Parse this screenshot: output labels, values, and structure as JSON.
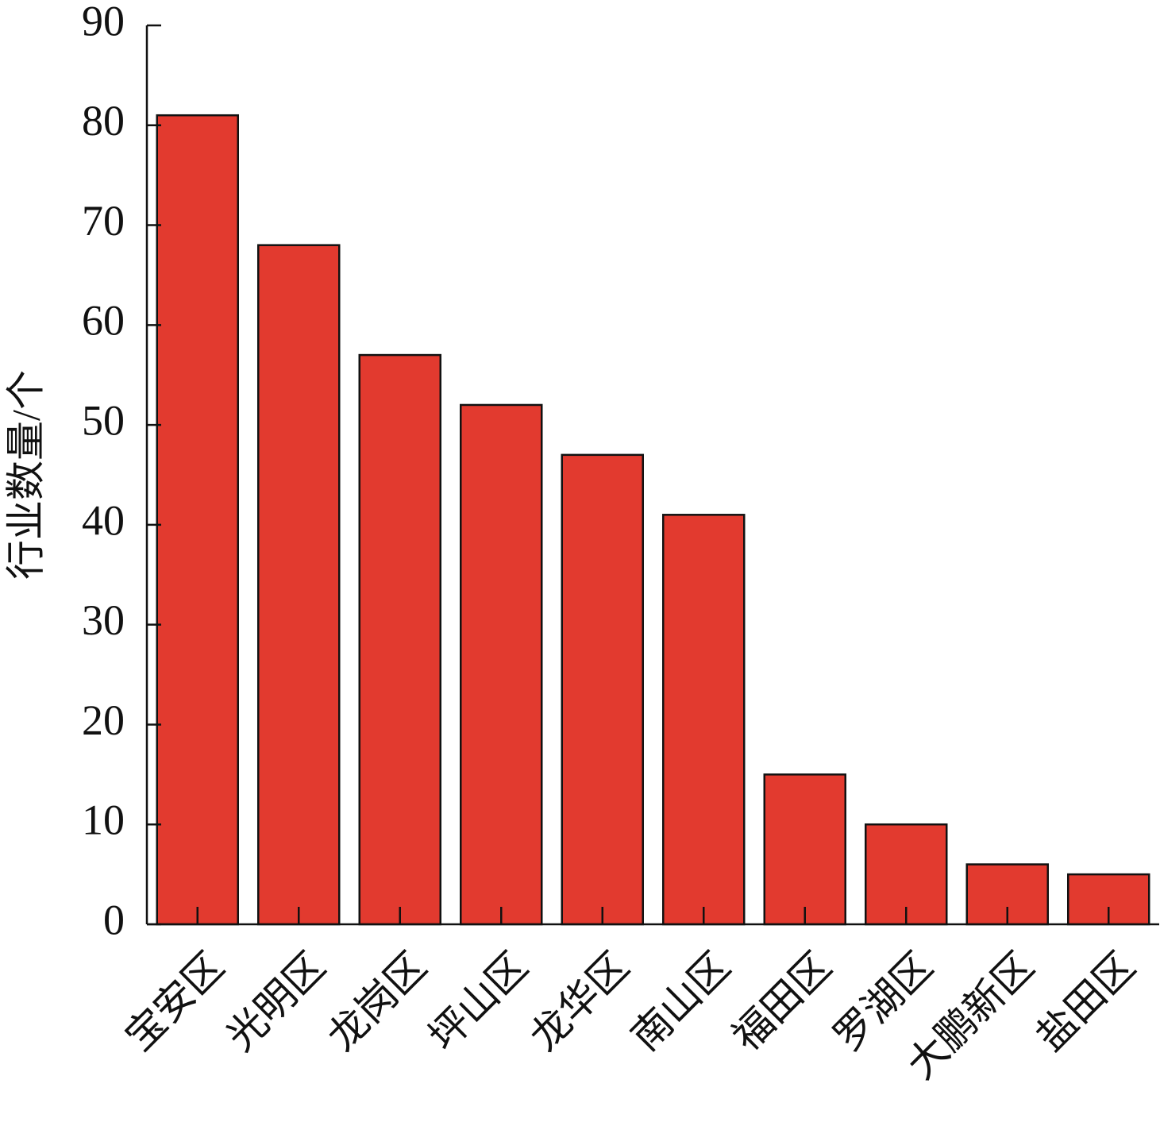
{
  "chart_data": {
    "type": "bar",
    "y_label": "行业数量/个",
    "categories": [
      "宝安区",
      "光明区",
      "龙岗区",
      "坪山区",
      "龙华区",
      "南山区",
      "福田区",
      "罗湖区",
      "大鹏新区",
      "盐田区"
    ],
    "values": [
      81,
      68,
      57,
      52,
      47,
      41,
      15,
      10,
      6,
      5
    ],
    "color": "#e23a2f",
    "ylim": [
      0,
      90
    ],
    "yticks": [
      0,
      10,
      20,
      30,
      40,
      50,
      60,
      70,
      80,
      90
    ],
    "grid": false
  }
}
